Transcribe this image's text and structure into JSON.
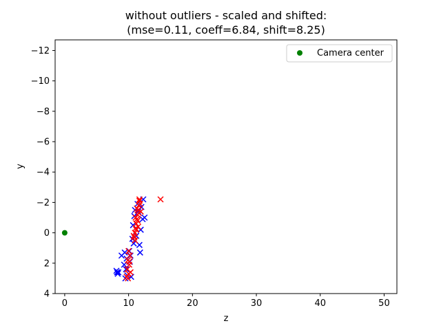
{
  "chart_data": {
    "type": "scatter",
    "title_line1": "without outliers - scaled and shifted:",
    "title_line2": "(mse=0.11, coeff=6.84, shift=8.25)",
    "xlabel": "z",
    "ylabel": "y",
    "xlim": [
      -1.5,
      52
    ],
    "ylim": [
      4,
      -12.7
    ],
    "y_inverted": true,
    "xticks": [
      0,
      10,
      20,
      30,
      40,
      50
    ],
    "yticks": [
      -12,
      -10,
      -8,
      -6,
      -4,
      -2,
      0,
      2,
      4
    ],
    "grid": false,
    "legend": {
      "placement": "top-right",
      "entries": [
        "Camera center"
      ]
    },
    "colors": {
      "blue": "#0000ff",
      "red": "#ff0000",
      "green": "#008000"
    },
    "series": [
      {
        "marker": "x",
        "color": "#0000ff",
        "points": [
          [
            8.2,
            2.6
          ],
          [
            8.4,
            2.6
          ],
          [
            8.1,
            2.5
          ],
          [
            8.3,
            2.7
          ],
          [
            8.9,
            1.5
          ],
          [
            12.3,
            -2.2
          ],
          [
            12.5,
            -1.0
          ],
          [
            12.0,
            -1.7
          ],
          [
            11.8,
            1.3
          ],
          [
            11.9,
            -0.2
          ],
          [
            10.8,
            0.7
          ],
          [
            10.6,
            0.4
          ],
          [
            11.2,
            0.2
          ],
          [
            12.2,
            -0.9
          ],
          [
            11.5,
            -1.4
          ],
          [
            10.9,
            -1.1
          ],
          [
            11.0,
            -1.5
          ],
          [
            11.7,
            0.8
          ],
          [
            10.7,
            -0.5
          ],
          [
            11.4,
            -1.9
          ],
          [
            9.5,
            3.0
          ],
          [
            9.6,
            2.4
          ],
          [
            9.7,
            1.7
          ],
          [
            9.4,
            1.3
          ],
          [
            10.2,
            1.9
          ],
          [
            10.4,
            2.9
          ],
          [
            9.3,
            2.1
          ],
          [
            10.1,
            1.2
          ],
          [
            9.8,
            2.8
          ],
          [
            10.3,
            1.5
          ]
        ]
      },
      {
        "marker": "x",
        "color": "#ff0000",
        "points": [
          [
            15.0,
            -2.2
          ],
          [
            9.9,
            3.0
          ],
          [
            10.0,
            2.7
          ],
          [
            9.8,
            2.4
          ],
          [
            10.1,
            2.1
          ],
          [
            9.9,
            1.8
          ],
          [
            10.2,
            1.5
          ],
          [
            10.0,
            1.2
          ],
          [
            10.3,
            2.6
          ],
          [
            9.7,
            2.9
          ],
          [
            10.1,
            1.9
          ],
          [
            10.9,
            0.3
          ],
          [
            11.0,
            0.0
          ],
          [
            11.1,
            -0.3
          ],
          [
            11.2,
            -0.6
          ],
          [
            11.3,
            -0.9
          ],
          [
            11.4,
            -1.2
          ],
          [
            11.5,
            -1.5
          ],
          [
            11.6,
            -1.8
          ],
          [
            11.7,
            -2.1
          ],
          [
            11.8,
            -1.9
          ],
          [
            11.2,
            -0.2
          ],
          [
            11.0,
            0.5
          ],
          [
            11.4,
            -0.8
          ],
          [
            11.6,
            -1.3
          ],
          [
            10.8,
            0.2
          ],
          [
            11.3,
            -1.6
          ],
          [
            11.5,
            -0.4
          ],
          [
            11.1,
            -1.0
          ],
          [
            11.7,
            -2.2
          ],
          [
            11.9,
            -1.4
          ]
        ]
      },
      {
        "name": "Camera center",
        "marker": "o",
        "color": "#008000",
        "points": [
          [
            0,
            0
          ]
        ]
      }
    ]
  }
}
